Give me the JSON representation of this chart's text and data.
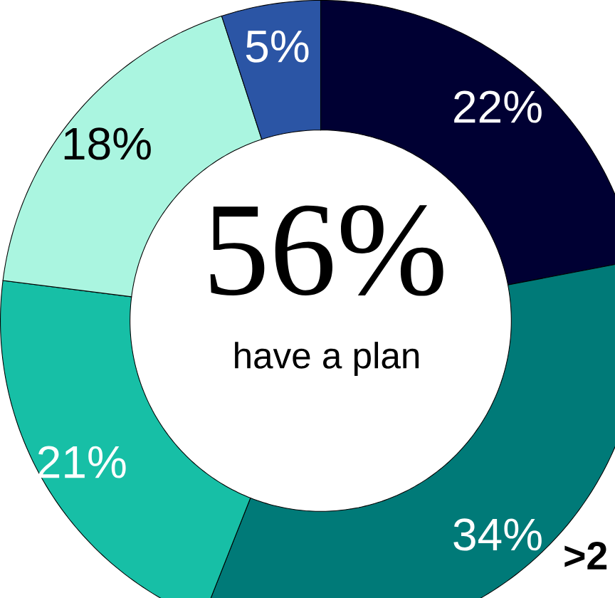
{
  "chart_data": {
    "type": "donut",
    "title": "56%",
    "subtitle": "have a plan",
    "categories": [
      null,
      null,
      null,
      null,
      null
    ],
    "values": [
      22,
      34,
      21,
      18,
      5
    ],
    "value_labels": [
      "22%",
      "34%",
      "21%",
      "18%",
      "5%"
    ],
    "colors": [
      "#000033",
      "#007a78",
      "#17bfa6",
      "#aaf5e0",
      "#2b55a5"
    ],
    "annotations": [
      ">2"
    ]
  }
}
